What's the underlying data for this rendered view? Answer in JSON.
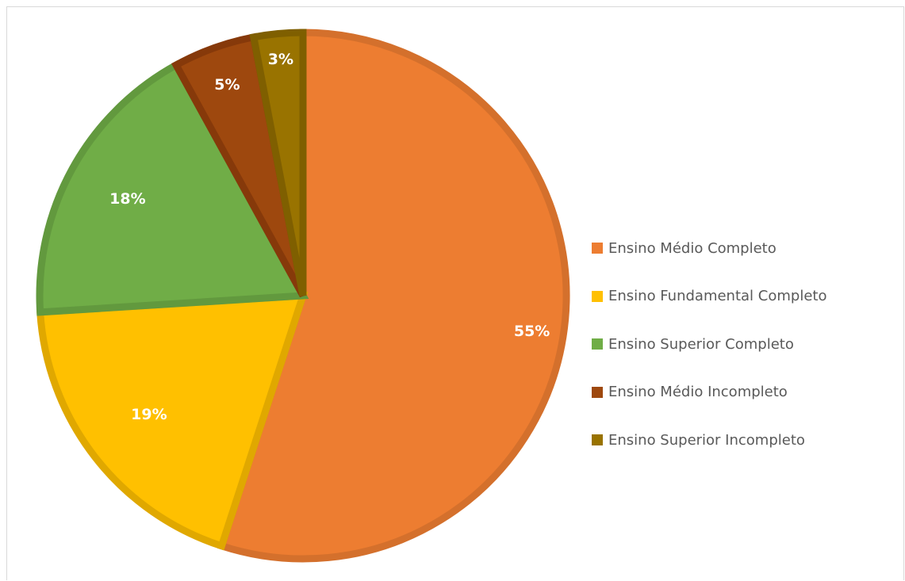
{
  "chart_data": {
    "type": "pie",
    "title": "",
    "categories": [
      "Ensino Médio Completo",
      "Ensino Fundamental Completo",
      "Ensino Superior Completo",
      "Ensino Médio Incompleto",
      "Ensino Superior Incompleto"
    ],
    "values": [
      55,
      19,
      18,
      5,
      3
    ],
    "labels": [
      "55%",
      "19%",
      "18%",
      "5%",
      "3%"
    ],
    "colors": [
      "#ED7D31",
      "#FFC000",
      "#70AD47",
      "#9E480E",
      "#997300"
    ],
    "edge_colors": [
      "#D4702C",
      "#E0A800",
      "#62993E",
      "#86390A",
      "#7F5F00"
    ],
    "start": "top (12 o'clock), clockwise",
    "legend_position": "right",
    "grid": false
  }
}
